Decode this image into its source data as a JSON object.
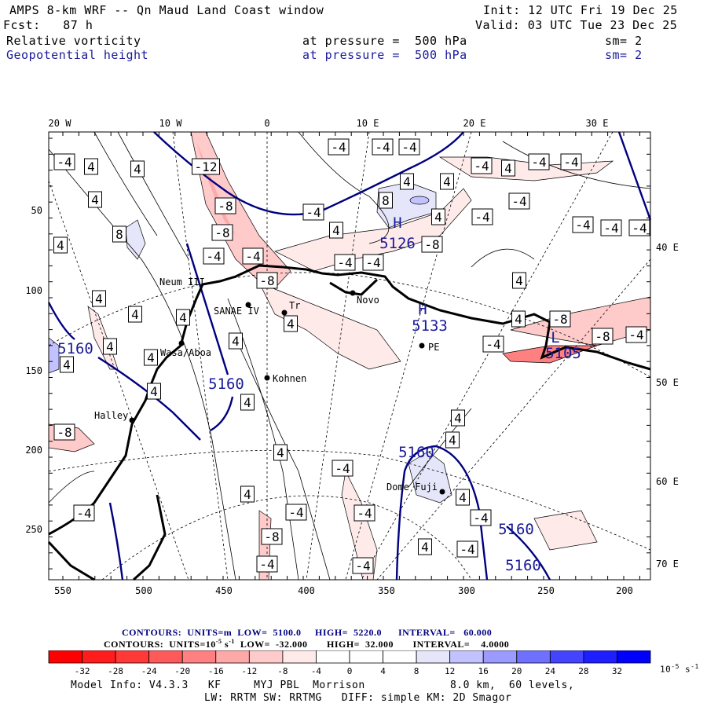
{
  "header": {
    "title": "AMPS 8-km WRF -- Qn Maud Land Coast window",
    "init": "Init: 12 UTC Fri 19 Dec 25",
    "fcst": "Fcst:   87 h",
    "valid": "Valid: 03 UTC Tue 23 Dec 25",
    "field1": {
      "name": "Relative vorticity",
      "level": "at pressure =  500 hPa",
      "sm": "sm= 2"
    },
    "field2": {
      "name": "Geopotential height",
      "level": "at pressure =  500 hPa",
      "sm": "sm= 2"
    }
  },
  "axes": {
    "top": [
      "20 W",
      "10 W",
      "0",
      "10 E",
      "20 E",
      "30 E"
    ],
    "left": [
      "50",
      "100",
      "150",
      "200",
      "250"
    ],
    "bottom": [
      "550",
      "500",
      "450",
      "400",
      "350",
      "300",
      "250",
      "200"
    ],
    "right": [
      "40 E",
      "50 E",
      "60 E",
      "70 E"
    ]
  },
  "stations": [
    "Neum III",
    "SANAE IV",
    "Tr",
    "Wasa/Aboa",
    "Kohnen",
    "Halley",
    "Novo",
    "PE",
    "Dome Fuji"
  ],
  "height_labels": [
    "5126",
    "5133",
    "5105",
    "5160",
    "5160",
    "5160",
    "5160",
    "5160"
  ],
  "hl_markers": [
    "H",
    "H",
    "L"
  ],
  "contour_label_values": [
    "4",
    "-4",
    "8",
    "-8",
    "-12"
  ],
  "legend": {
    "height_contours": "CONTOURS:  UNITS=m  LOW=  5100.0     HIGH=  5220.0      INTERVAL=   60.000",
    "vort_contours_prefix": "CONTOURS:  UNITS=10",
    "vort_contours_exp": "-5",
    "vort_contours_rest": " s",
    "vort_contours_exp2": "-1",
    "vort_contours_tail": "  LOW=  -32.000       HIGH=  32.000       INTERVAL=    4.0000",
    "colors": [
      "#ff0000",
      "#ff1c1c",
      "#ff3838",
      "#ff5a5a",
      "#ff8080",
      "#ffa8a8",
      "#ffcaca",
      "#ffeaea",
      "#ffffff",
      "#ffffff",
      "#ffffff",
      "#e6e6fb",
      "#c2c2ff",
      "#9a9aff",
      "#7070ff",
      "#4444ff",
      "#1e1eff",
      "#0000ff"
    ],
    "ticks": [
      "-32",
      "-28",
      "-24",
      "-20",
      "-16",
      "-12",
      "-8",
      "-4",
      "0",
      "4",
      "8",
      "12",
      "16",
      "20",
      "24",
      "28",
      "32"
    ],
    "units": "10",
    "units_exp": "-5",
    "units_s": "s",
    "units_exp2": "-1"
  },
  "footer": {
    "line1": "Model Info: V4.3.3   KF     MYJ PBL  Morrison             8.0 km,  60 levels,",
    "line2": "LW: RRTM SW: RRTMG   DIFF: simple KM: 2D Smagor"
  }
}
